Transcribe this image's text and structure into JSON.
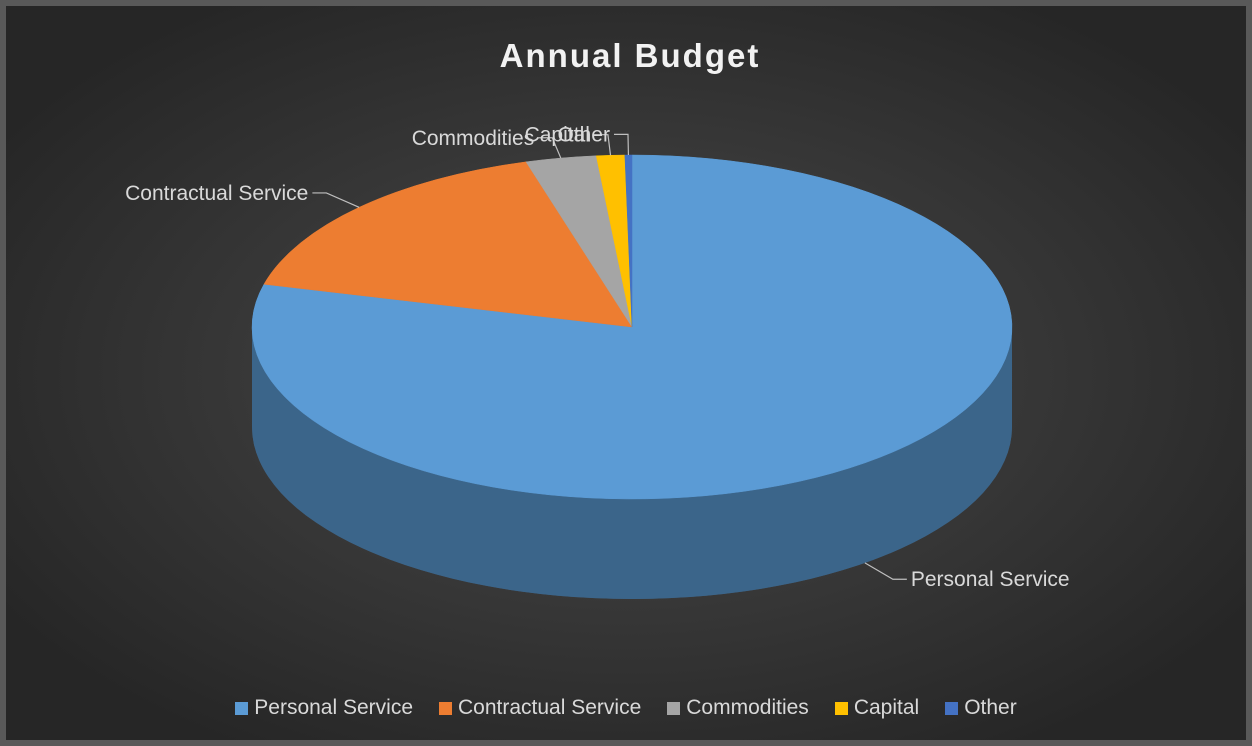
{
  "chart_data": {
    "type": "pie",
    "title": "Annual Budget",
    "style": "3d",
    "legend_position": "bottom",
    "slices": [
      {
        "label": "Personal Service",
        "value": 79.0,
        "color": "#5b9bd5"
      },
      {
        "label": "Contractual Service",
        "value": 16.5,
        "color": "#ed7d31"
      },
      {
        "label": "Commodities",
        "value": 3.0,
        "color": "#a5a5a5"
      },
      {
        "label": "Capital",
        "value": 1.2,
        "color": "#ffc000"
      },
      {
        "label": "Other",
        "value": 0.3,
        "color": "#4472c4"
      }
    ]
  }
}
